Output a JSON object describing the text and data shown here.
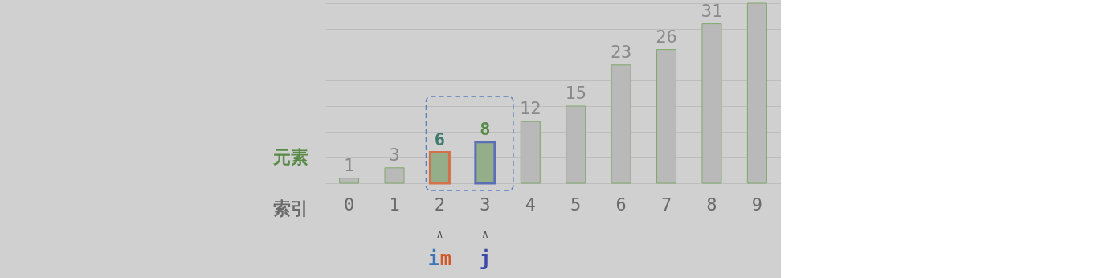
{
  "chart_data": {
    "type": "bar",
    "xlabel": "索引",
    "ylabel": "元素",
    "categories": [
      "0",
      "1",
      "2",
      "3",
      "4",
      "5",
      "6",
      "7",
      "8",
      "9"
    ],
    "values": [
      1,
      3,
      6,
      8,
      12,
      15,
      23,
      26,
      31,
      35
    ],
    "value_labels": [
      "1",
      "3",
      "6",
      "8",
      "12",
      "15",
      "23",
      "26",
      "31",
      null
    ],
    "colors": [
      "#b9b9b9",
      "#b9b9b9",
      "#94ae8a",
      "#94ae8a",
      "#b9b9b9",
      "#b9b9b9",
      "#b9b9b9",
      "#b9b9b9",
      "#b9b9b9",
      "#b9b9b9"
    ],
    "ylim": [
      0,
      35
    ],
    "yticks": [
      {
        "value": 0,
        "label": null
      },
      {
        "value": 5,
        "label": null
      },
      {
        "value": 10,
        "label": null
      },
      {
        "value": 15,
        "label": null
      },
      {
        "value": 20,
        "label": null
      },
      {
        "value": 25,
        "label": null
      },
      {
        "value": 30,
        "label": null
      },
      {
        "value": 35,
        "label": null
      }
    ],
    "grid": "y",
    "annotations": [
      "∧",
      "∧",
      "i",
      "m",
      "j"
    ]
  }
}
